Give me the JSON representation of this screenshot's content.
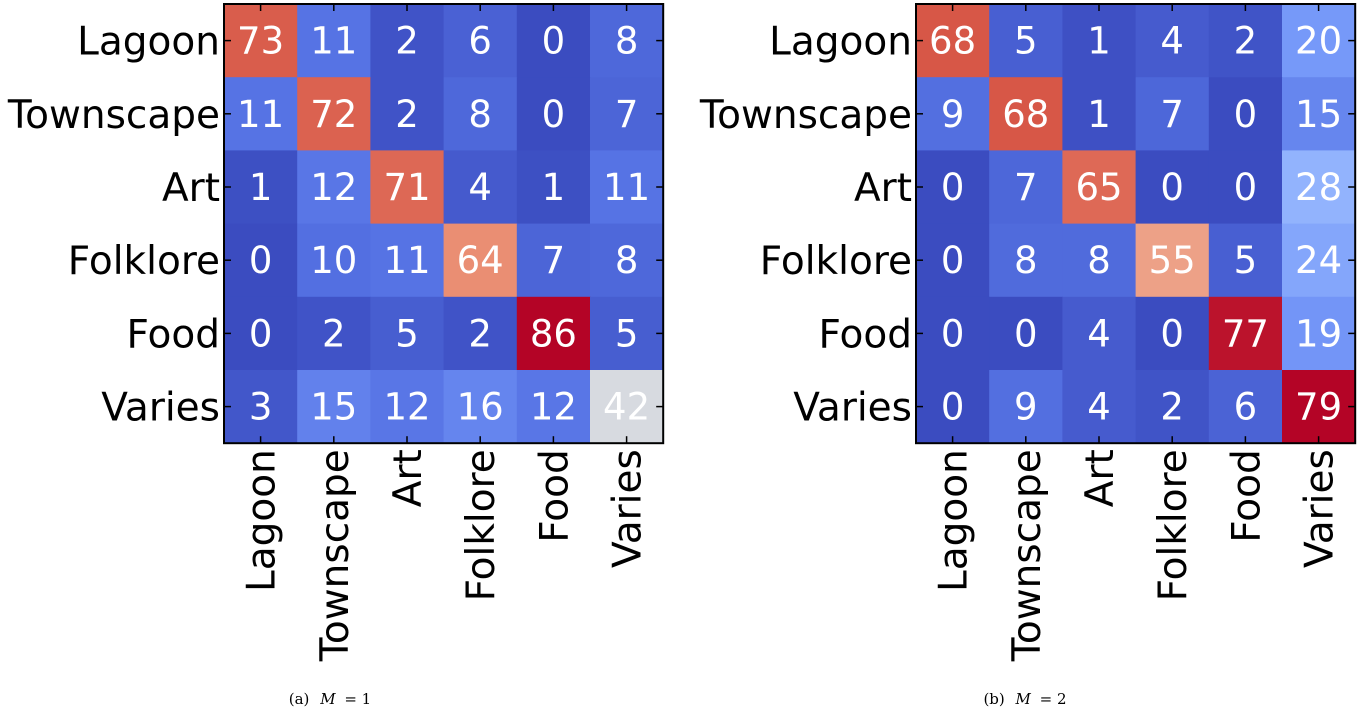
{
  "chart_data": [
    {
      "type": "heatmap",
      "caption_prefix": "(a)",
      "caption_var": "M",
      "caption_value": "= 1",
      "x_categories": [
        "Lagoon",
        "Townscape",
        "Art",
        "Folklore",
        "Food",
        "Varies"
      ],
      "y_categories": [
        "Lagoon",
        "Townscape",
        "Art",
        "Folklore",
        "Food",
        "Varies"
      ],
      "values": [
        [
          73,
          11,
          2,
          6,
          0,
          8
        ],
        [
          11,
          72,
          2,
          8,
          0,
          7
        ],
        [
          1,
          12,
          71,
          4,
          1,
          11
        ],
        [
          0,
          10,
          11,
          64,
          7,
          8
        ],
        [
          0,
          2,
          5,
          2,
          86,
          5
        ],
        [
          3,
          15,
          12,
          16,
          12,
          42
        ]
      ],
      "colormap": "coolwarm",
      "value_range": [
        0,
        86
      ]
    },
    {
      "type": "heatmap",
      "caption_prefix": "(b)",
      "caption_var": "M",
      "caption_value": "= 2",
      "x_categories": [
        "Lagoon",
        "Townscape",
        "Art",
        "Folklore",
        "Food",
        "Varies"
      ],
      "y_categories": [
        "Lagoon",
        "Townscape",
        "Art",
        "Folklore",
        "Food",
        "Varies"
      ],
      "values": [
        [
          68,
          5,
          1,
          4,
          2,
          20
        ],
        [
          9,
          68,
          1,
          7,
          0,
          15
        ],
        [
          0,
          7,
          65,
          0,
          0,
          28
        ],
        [
          0,
          8,
          8,
          55,
          5,
          24
        ],
        [
          0,
          0,
          4,
          0,
          77,
          19
        ],
        [
          0,
          9,
          4,
          2,
          6,
          79
        ]
      ],
      "colormap": "coolwarm",
      "value_range": [
        0,
        79
      ]
    }
  ]
}
